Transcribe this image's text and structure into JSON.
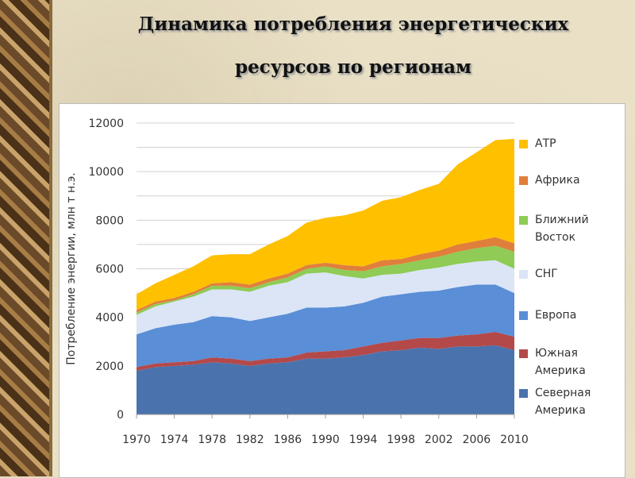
{
  "chart_data": {
    "type": "stacked_area",
    "title": "Динамика потребления энергетических ресурсов по регионам",
    "y_label": "Потребление энергии, млн т н.э.",
    "x": [
      1970,
      1972,
      1974,
      1976,
      1978,
      1980,
      1982,
      1984,
      1986,
      1988,
      1990,
      1992,
      1994,
      1996,
      1998,
      2000,
      2002,
      2004,
      2006,
      2008,
      2010
    ],
    "xlim": [
      1970,
      2010
    ],
    "xticks": [
      1970,
      1974,
      1978,
      1982,
      1986,
      1990,
      1994,
      1998,
      2002,
      2006,
      2010
    ],
    "ylim": [
      0,
      12000
    ],
    "yticks": [
      0,
      2000,
      4000,
      6000,
      8000,
      10000,
      12000
    ],
    "y_gridlines": [
      1000,
      2000,
      3000,
      4000,
      5000,
      6000,
      7000,
      8000,
      9000,
      10000,
      11000,
      12000
    ],
    "series": [
      {
        "name": "Северная Америка",
        "color": "#4a73ad",
        "values": [
          1800,
          1950,
          2000,
          2050,
          2150,
          2100,
          2000,
          2100,
          2150,
          2300,
          2300,
          2350,
          2450,
          2600,
          2650,
          2750,
          2700,
          2800,
          2800,
          2850,
          2650
        ]
      },
      {
        "name": "Южная Америка",
        "color": "#b4494a",
        "values": [
          150,
          150,
          150,
          150,
          200,
          200,
          200,
          200,
          200,
          250,
          300,
          300,
          350,
          350,
          400,
          400,
          450,
          450,
          500,
          550,
          550
        ]
      },
      {
        "name": "Европа",
        "color": "#5a8ed6",
        "values": [
          1350,
          1450,
          1550,
          1600,
          1700,
          1700,
          1650,
          1700,
          1800,
          1850,
          1800,
          1800,
          1800,
          1900,
          1900,
          1900,
          1950,
          2000,
          2050,
          1950,
          1800
        ]
      },
      {
        "name": "СНГ",
        "color": "#dbe5f6",
        "values": [
          800,
          900,
          950,
          1050,
          1100,
          1150,
          1200,
          1300,
          1300,
          1400,
          1450,
          1250,
          1000,
          900,
          850,
          900,
          950,
          950,
          950,
          1000,
          1000
        ]
      },
      {
        "name": "Ближний Восток",
        "color": "#8fcb55",
        "values": [
          100,
          100,
          50,
          100,
          150,
          150,
          150,
          150,
          200,
          200,
          250,
          250,
          300,
          350,
          400,
          400,
          450,
          500,
          550,
          600,
          700
        ]
      },
      {
        "name": "Африка",
        "color": "#e07f3b",
        "values": [
          100,
          100,
          100,
          100,
          100,
          150,
          150,
          150,
          150,
          150,
          150,
          200,
          200,
          250,
          200,
          250,
          250,
          300,
          300,
          350,
          350
        ]
      },
      {
        "name": "АТР",
        "color": "#ffc000",
        "values": [
          650,
          750,
          950,
          1050,
          1150,
          1150,
          1250,
          1400,
          1550,
          1750,
          1850,
          2050,
          2300,
          2450,
          2550,
          2650,
          2750,
          3300,
          3650,
          4000,
          4300
        ]
      }
    ]
  }
}
